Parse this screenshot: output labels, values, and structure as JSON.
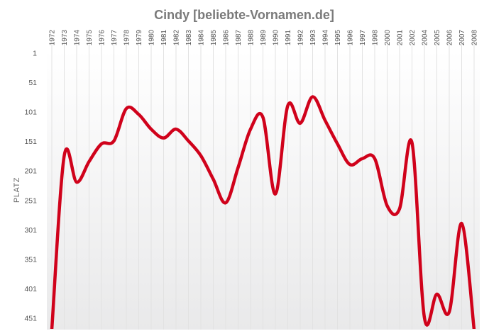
{
  "chart_data": {
    "type": "line",
    "title": "Cindy [beliebte-Vornamen.de]",
    "xlabel": "",
    "ylabel": "PLATZ",
    "y_reversed": true,
    "ylim": [
      1,
      470
    ],
    "y_ticks": [
      1,
      51,
      101,
      151,
      201,
      251,
      301,
      351,
      401,
      451
    ],
    "grid": {
      "vertical": true,
      "horizontal": false
    },
    "legend": "none",
    "colors": {
      "line": "#d0021b",
      "title": "#7a7a7a",
      "grid": "#e2e2e2"
    },
    "x": [
      "1972",
      "1973",
      "1974",
      "1975",
      "1976",
      "1977",
      "1978",
      "1979",
      "1980",
      "1981",
      "1982",
      "1983",
      "1984",
      "1985",
      "1986",
      "1987",
      "1988",
      "1989",
      "1990",
      "1991",
      "1992",
      "1993",
      "1994",
      "1995",
      "1996",
      "1997",
      "1998",
      "2000",
      "2001",
      "2002",
      "2004",
      "2005",
      "2006",
      "2007",
      "2008"
    ],
    "series": [
      {
        "values": [
          470,
          175,
          220,
          185,
          155,
          150,
          95,
          105,
          130,
          145,
          130,
          150,
          175,
          215,
          255,
          195,
          130,
          110,
          240,
          90,
          120,
          75,
          115,
          155,
          190,
          180,
          180,
          260,
          265,
          153,
          450,
          410,
          440,
          290,
          470
        ]
      }
    ]
  }
}
